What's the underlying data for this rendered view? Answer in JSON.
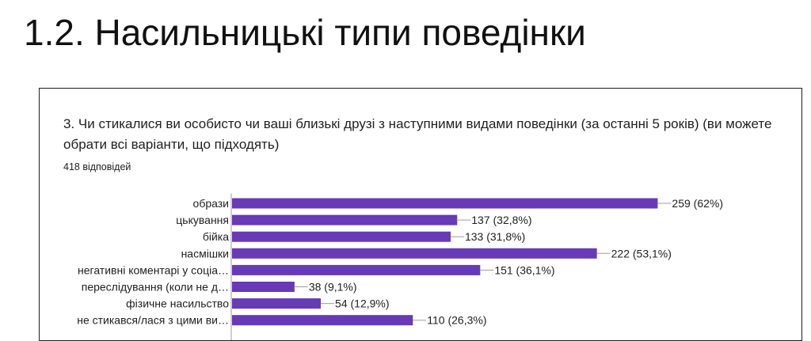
{
  "slide": {
    "title": "1.2. Насильницькі типи поведінки"
  },
  "card": {
    "question": "3. Чи стикалися ви особисто чи ваші близькі друзі з наступними видами поведінки (за останні 5 років) (ви можете обрати всі варіанти, що підходять)",
    "responses": "418 відповідей"
  },
  "colors": {
    "bar": "#673ab7",
    "axis": "#9e9e9e",
    "leader": "#9e9e9e"
  },
  "chart_data": {
    "type": "bar",
    "orientation": "horizontal",
    "categories": [
      "образи",
      "цькування",
      "бійка",
      "насмішки",
      "негативні коментарі у соціа…",
      "переслідування (коли не д…",
      "фізичне насильство",
      "не стикався/лася з цими ви…"
    ],
    "values": [
      259,
      137,
      133,
      222,
      151,
      38,
      54,
      110
    ],
    "data_labels": [
      "259 (62%)",
      "137 (32,8%)",
      "133 (31,8%)",
      "222 (53,1%)",
      "151 (36,1%)",
      "38 (9,1%)",
      "54 (12,9%)",
      "110 (26,3%)"
    ],
    "xlim": [
      0,
      300
    ],
    "grid": false
  }
}
